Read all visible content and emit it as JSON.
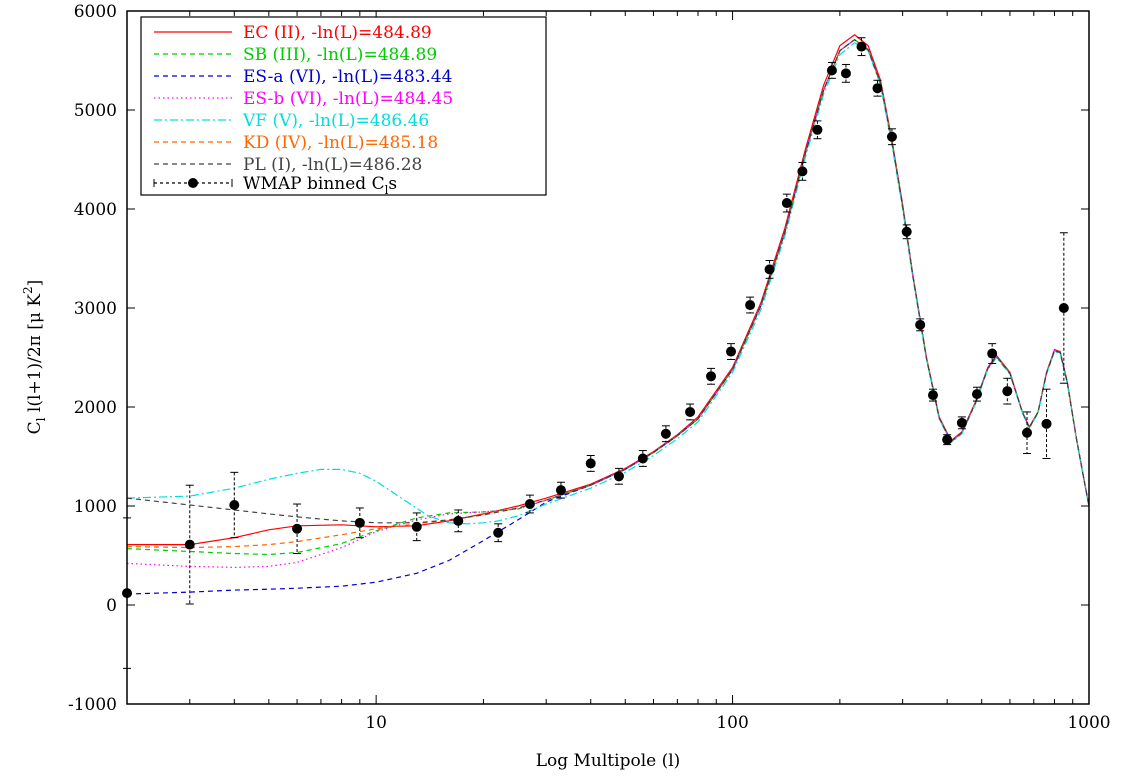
{
  "chart_data": {
    "type": "line",
    "title": "",
    "xlabel": "Log Multipole (l)",
    "ylabel_main": "C",
    "ylabel_sub": "l",
    "ylabel_rest": " l(l+1)/2π [μ K",
    "ylabel_sup": "2",
    "ylabel_end": "]",
    "xscale": "log",
    "xlim": [
      2,
      1000
    ],
    "ylim": [
      -1000,
      6000
    ],
    "xticks": [
      10,
      100,
      1000
    ],
    "xtick_labels": [
      "10",
      "100",
      "1000"
    ],
    "yticks": [
      -1000,
      0,
      1000,
      2000,
      3000,
      4000,
      5000,
      6000
    ],
    "ytick_labels": [
      "-1000",
      "0",
      "1000",
      "2000",
      "3000",
      "4000",
      "5000",
      "6000"
    ],
    "grid": false,
    "legend_position": "top-left",
    "series": [
      {
        "name": "EC (II), -ln(L)=484.89",
        "color": "#ff0000",
        "dash": "solid",
        "x": [
          2,
          3,
          4,
          5,
          6,
          8,
          10,
          13,
          16,
          20,
          25,
          30,
          40,
          50,
          60,
          70,
          80,
          100,
          120,
          140,
          160,
          180,
          200,
          220,
          240,
          260,
          280,
          300,
          320,
          350,
          380,
          410,
          440,
          480,
          520,
          550,
          600,
          650,
          680,
          720,
          760,
          800,
          830,
          870,
          920,
          970,
          1000
        ],
        "y": [
          610,
          610,
          680,
          760,
          800,
          810,
          790,
          800,
          850,
          920,
          1000,
          1080,
          1220,
          1380,
          1550,
          1720,
          1900,
          2400,
          3050,
          3800,
          4600,
          5250,
          5650,
          5760,
          5650,
          5300,
          4700,
          4050,
          3350,
          2500,
          1900,
          1660,
          1750,
          2050,
          2400,
          2520,
          2350,
          1950,
          1800,
          1950,
          2350,
          2580,
          2560,
          2250,
          1700,
          1250,
          1000
        ]
      },
      {
        "name": "SB (III), -ln(L)=484.89",
        "color": "#00cc00",
        "dash": "dashed",
        "x": [
          2,
          3,
          4,
          5,
          6,
          8,
          10,
          13,
          16,
          20,
          25,
          30,
          40,
          50,
          60,
          70,
          80,
          100,
          120,
          140,
          160,
          180,
          200,
          220,
          240,
          260,
          280,
          300,
          320,
          350,
          380,
          410,
          440,
          480,
          520,
          550,
          600,
          650,
          680,
          720,
          760,
          800,
          830,
          870,
          920,
          970,
          1000
        ],
        "y": [
          570,
          540,
          520,
          510,
          530,
          620,
          750,
          880,
          930,
          940,
          970,
          1060,
          1210,
          1370,
          1540,
          1710,
          1880,
          2380,
          3020,
          3760,
          4560,
          5200,
          5600,
          5710,
          5610,
          5270,
          4680,
          4030,
          3340,
          2490,
          1890,
          1650,
          1740,
          2040,
          2390,
          2510,
          2340,
          1950,
          1790,
          1950,
          2340,
          2570,
          2550,
          2240,
          1700,
          1250,
          1000
        ]
      },
      {
        "name": "ES-a (VI), -ln(L)=483.44",
        "color": "#0000cc",
        "dash": "dashed",
        "x": [
          2,
          3,
          4,
          5,
          6,
          8,
          10,
          13,
          16,
          20,
          25,
          30,
          40,
          50,
          60,
          70,
          80,
          100,
          120,
          140,
          160,
          180,
          200,
          220,
          240,
          260,
          280,
          300,
          320,
          350,
          380,
          410,
          440,
          480,
          520,
          550,
          600,
          650,
          680,
          720,
          760,
          800,
          830,
          870,
          920,
          970,
          1000
        ],
        "y": [
          110,
          130,
          150,
          160,
          170,
          190,
          230,
          320,
          450,
          650,
          860,
          1040,
          1210,
          1370,
          1540,
          1710,
          1880,
          2380,
          3020,
          3760,
          4560,
          5200,
          5600,
          5710,
          5610,
          5270,
          4680,
          4030,
          3340,
          2490,
          1890,
          1650,
          1740,
          2040,
          2390,
          2510,
          2340,
          1950,
          1790,
          1950,
          2340,
          2570,
          2550,
          2240,
          1700,
          1250,
          1000
        ]
      },
      {
        "name": "ES-b (VI), -ln(L)=484.45",
        "color": "#ff00ff",
        "dash": "dotted",
        "x": [
          2,
          3,
          4,
          5,
          6,
          8,
          10,
          13,
          16,
          20,
          25,
          30,
          40,
          50,
          60,
          70,
          80,
          100,
          120,
          140,
          160,
          180,
          200,
          220,
          240,
          260,
          280,
          300,
          320,
          350,
          380,
          410,
          440,
          480,
          520,
          550,
          600,
          650,
          680,
          720,
          760,
          800,
          830,
          870,
          920,
          970,
          1000
        ],
        "y": [
          420,
          390,
          380,
          390,
          430,
          580,
          740,
          860,
          920,
          940,
          970,
          1060,
          1210,
          1370,
          1540,
          1710,
          1880,
          2380,
          3020,
          3760,
          4560,
          5200,
          5600,
          5710,
          5610,
          5270,
          4680,
          4030,
          3340,
          2490,
          1890,
          1650,
          1740,
          2040,
          2390,
          2510,
          2340,
          1950,
          1790,
          1950,
          2340,
          2570,
          2550,
          2240,
          1700,
          1250,
          1000
        ]
      },
      {
        "name": "VF (V), -ln(L)=486.46",
        "color": "#00dddd",
        "dash": "dashdot",
        "x": [
          2,
          3,
          4,
          5,
          6,
          7,
          8,
          9,
          10,
          12,
          14,
          16,
          18,
          20,
          22,
          25,
          30,
          40,
          50,
          60,
          70,
          80,
          100,
          120,
          140,
          160,
          180,
          200,
          220,
          240,
          260,
          280,
          300,
          320,
          350,
          380,
          410,
          440,
          480,
          520,
          550,
          600,
          650,
          680,
          720,
          760,
          800,
          830,
          870,
          920,
          970,
          1000
        ],
        "y": [
          1080,
          1100,
          1180,
          1270,
          1330,
          1370,
          1370,
          1330,
          1250,
          1060,
          900,
          830,
          820,
          830,
          850,
          900,
          1020,
          1180,
          1340,
          1510,
          1680,
          1850,
          2350,
          2980,
          3720,
          4520,
          5160,
          5560,
          5680,
          5600,
          5250,
          4650,
          4000,
          3320,
          2480,
          1880,
          1640,
          1730,
          2030,
          2380,
          2500,
          2330,
          1940,
          1780,
          1940,
          2330,
          2560,
          2540,
          2230,
          1700,
          1250,
          1000
        ]
      },
      {
        "name": "KD (IV), -ln(L)=485.18",
        "color": "#ff6600",
        "dash": "dashed",
        "x": [
          2,
          3,
          4,
          5,
          6,
          8,
          10,
          13,
          16,
          20,
          25,
          30,
          40,
          50,
          60,
          70,
          80,
          100,
          120,
          140,
          160,
          180,
          200,
          220,
          240,
          260,
          280,
          300,
          320,
          350,
          380,
          410,
          440,
          480,
          520,
          550,
          600,
          650,
          680,
          720,
          760,
          800,
          830,
          870,
          920,
          970,
          1000
        ],
        "y": [
          590,
          580,
          590,
          610,
          640,
          710,
          770,
          820,
          860,
          910,
          980,
          1060,
          1210,
          1370,
          1540,
          1710,
          1880,
          2380,
          3020,
          3760,
          4560,
          5200,
          5600,
          5710,
          5610,
          5270,
          4680,
          4030,
          3340,
          2490,
          1890,
          1650,
          1740,
          2040,
          2390,
          2510,
          2340,
          1950,
          1790,
          1950,
          2340,
          2570,
          2550,
          2240,
          1700,
          1250,
          1000
        ]
      },
      {
        "name": "PL (I), -ln(L)=486.28",
        "color": "#444444",
        "dash": "dashed",
        "x": [
          2,
          3,
          4,
          5,
          6,
          8,
          10,
          13,
          16,
          20,
          25,
          30,
          40,
          50,
          60,
          70,
          80,
          100,
          120,
          140,
          160,
          180,
          200,
          220,
          240,
          260,
          280,
          300,
          320,
          350,
          380,
          410,
          440,
          480,
          520,
          550,
          600,
          650,
          680,
          720,
          760,
          800,
          830,
          870,
          920,
          970,
          1000
        ],
        "y": [
          1080,
          1010,
          960,
          920,
          890,
          850,
          830,
          830,
          860,
          910,
          980,
          1060,
          1210,
          1370,
          1540,
          1710,
          1880,
          2380,
          3020,
          3760,
          4560,
          5200,
          5600,
          5710,
          5610,
          5270,
          4680,
          4030,
          3340,
          2490,
          1890,
          1650,
          1740,
          2040,
          2390,
          2510,
          2340,
          1950,
          1790,
          1950,
          2340,
          2570,
          2550,
          2240,
          1700,
          1250,
          1000
        ]
      }
    ],
    "points": {
      "name_main": "WMAP binned C",
      "name_sub": "l",
      "name_end": "s",
      "color": "#000000",
      "x": [
        2,
        3,
        4,
        6,
        9,
        13,
        17,
        22,
        27,
        33,
        40,
        48,
        56,
        65,
        76,
        87,
        99,
        112,
        127,
        142,
        157,
        173,
        190,
        208,
        230,
        255,
        280,
        308,
        336,
        365,
        400,
        440,
        485,
        535,
        590,
        670,
        760,
        850
      ],
      "y": [
        120,
        610,
        1010,
        770,
        830,
        790,
        850,
        730,
        1020,
        1160,
        1430,
        1300,
        1480,
        1730,
        1950,
        2310,
        2560,
        3030,
        3390,
        4060,
        4380,
        4800,
        5400,
        5370,
        5640,
        5220,
        4730,
        3770,
        2830,
        2120,
        1670,
        1840,
        2130,
        2540,
        2160,
        1740,
        1830,
        3000
      ],
      "err": [
        760,
        600,
        330,
        250,
        150,
        140,
        110,
        90,
        90,
        80,
        80,
        80,
        80,
        80,
        80,
        80,
        80,
        80,
        90,
        90,
        90,
        90,
        80,
        90,
        90,
        80,
        80,
        70,
        60,
        60,
        50,
        60,
        70,
        100,
        130,
        210,
        350,
        760
      ]
    }
  }
}
